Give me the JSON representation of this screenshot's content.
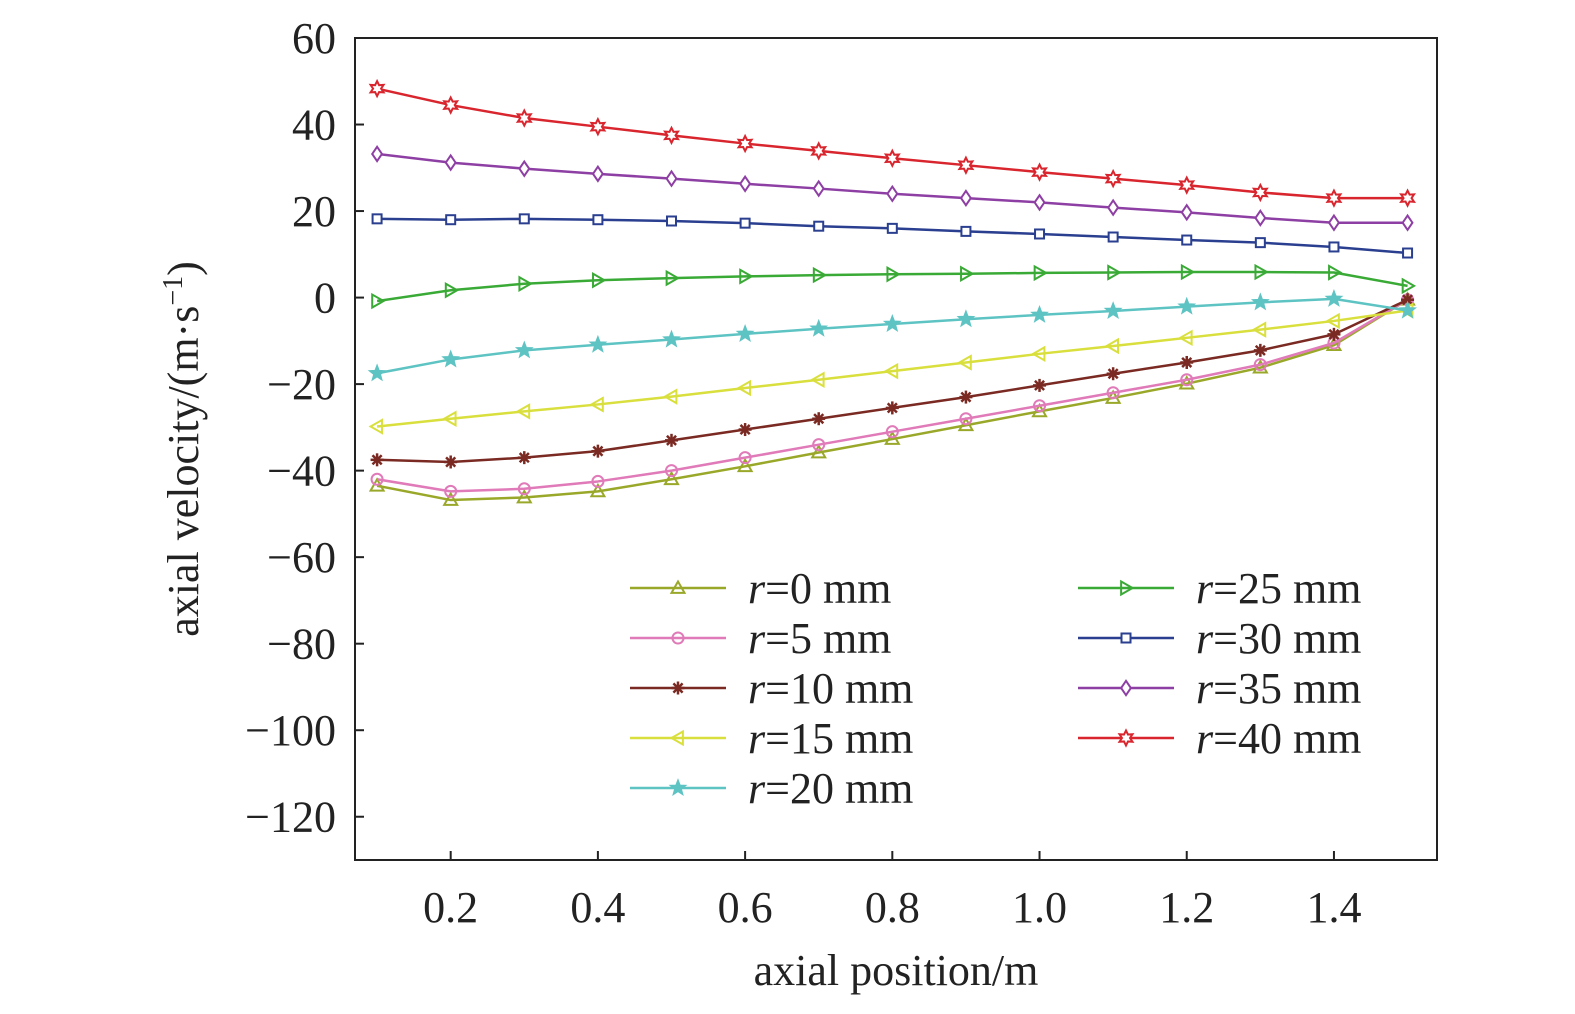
{
  "chart_data": {
    "type": "line",
    "xlabel": "axial position/m",
    "ylabel_text": "axial velocity/(m·s",
    "ylabel_sup": "−1",
    "ylabel_close": ")",
    "xlim": [
      0.07,
      1.54
    ],
    "ylim": [
      -130,
      60
    ],
    "xticks": [
      0.2,
      0.4,
      0.6,
      0.8,
      1.0,
      1.2,
      1.4
    ],
    "xtick_labels": [
      "0.2",
      "0.4",
      "0.6",
      "0.8",
      "1.0",
      "1.2",
      "1.4"
    ],
    "yticks": [
      60,
      40,
      20,
      0,
      -20,
      -40,
      -60,
      -80,
      -100,
      -120
    ],
    "ytick_labels": [
      "60",
      "40",
      "20",
      "0",
      "−20",
      "−40",
      "−60",
      "−80",
      "−100",
      "−120"
    ],
    "x": [
      0.1,
      0.2,
      0.3,
      0.4,
      0.5,
      0.6,
      0.7,
      0.8,
      0.9,
      1.0,
      1.1,
      1.2,
      1.3,
      1.4,
      1.5
    ],
    "legend_placement": "lower-right",
    "legend_columns": 2,
    "series": [
      {
        "name_var": "r",
        "name_rest": "=0 mm",
        "color": "#9aa82a",
        "marker": "triangle-up",
        "values": [
          -43.5,
          -46.8,
          -46.2,
          -44.8,
          -42.0,
          -39.0,
          -35.8,
          -32.7,
          -29.5,
          -26.3,
          -23.2,
          -19.9,
          -16.2,
          -11.0,
          -0.5
        ]
      },
      {
        "name_var": "r",
        "name_rest": "=5 mm",
        "color": "#e07ab8",
        "marker": "circle",
        "values": [
          -42.0,
          -44.8,
          -44.2,
          -42.5,
          -40.0,
          -37.0,
          -34.0,
          -31.0,
          -28.0,
          -25.0,
          -22.0,
          -19.0,
          -15.5,
          -10.5,
          -0.5
        ]
      },
      {
        "name_var": "r",
        "name_rest": "=10 mm",
        "color": "#7a2a22",
        "marker": "asterisk",
        "values": [
          -37.5,
          -38.0,
          -37.0,
          -35.5,
          -33.0,
          -30.5,
          -28.0,
          -25.5,
          -23.0,
          -20.3,
          -17.6,
          -15.0,
          -12.2,
          -8.5,
          -0.5
        ]
      },
      {
        "name_var": "r",
        "name_rest": "=15 mm",
        "color": "#d9df3c",
        "marker": "triangle-left",
        "values": [
          -29.8,
          -28.0,
          -26.3,
          -24.7,
          -22.9,
          -20.9,
          -19.0,
          -17.0,
          -15.0,
          -13.0,
          -11.2,
          -9.3,
          -7.4,
          -5.4,
          -3.0
        ]
      },
      {
        "name_var": "r",
        "name_rest": "=20 mm",
        "color": "#5ec3c3",
        "marker": "star",
        "values": [
          -17.5,
          -14.3,
          -12.2,
          -10.9,
          -9.7,
          -8.4,
          -7.2,
          -6.1,
          -5.0,
          -4.0,
          -3.1,
          -2.1,
          -1.1,
          -0.3,
          -3.0
        ]
      },
      {
        "name_var": "r",
        "name_rest": "=25 mm",
        "color": "#3aaa36",
        "marker": "triangle-right",
        "values": [
          -0.8,
          1.7,
          3.2,
          4.0,
          4.5,
          4.9,
          5.2,
          5.4,
          5.5,
          5.7,
          5.8,
          5.9,
          5.9,
          5.8,
          2.7
        ]
      },
      {
        "name_var": "r",
        "name_rest": "=30 mm",
        "color": "#2a3f8f",
        "marker": "square",
        "values": [
          18.2,
          18.0,
          18.2,
          18.0,
          17.7,
          17.2,
          16.5,
          16.0,
          15.3,
          14.7,
          14.0,
          13.3,
          12.7,
          11.7,
          10.3
        ]
      },
      {
        "name_var": "r",
        "name_rest": "=35 mm",
        "color": "#8e3fa4",
        "marker": "diamond",
        "values": [
          33.2,
          31.2,
          29.8,
          28.6,
          27.5,
          26.3,
          25.2,
          24.0,
          23.0,
          22.0,
          20.8,
          19.7,
          18.4,
          17.3,
          17.3
        ]
      },
      {
        "name_var": "r",
        "name_rest": "=40 mm",
        "color": "#d9262e",
        "marker": "star6",
        "values": [
          48.3,
          44.5,
          41.5,
          39.5,
          37.5,
          35.6,
          33.9,
          32.2,
          30.6,
          29.0,
          27.5,
          26.0,
          24.3,
          23.0,
          23.0
        ]
      }
    ]
  }
}
